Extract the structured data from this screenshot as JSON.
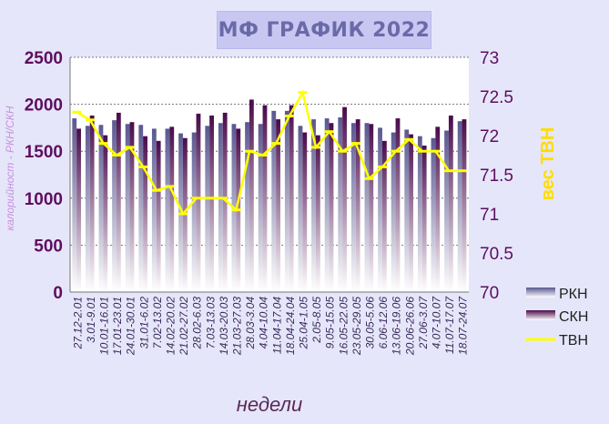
{
  "chart_data": {
    "type": "bar",
    "title": "МФ ГРАФИК 2022",
    "xlabel": "недели",
    "ylabel": "калорийност - РКН/СКН",
    "y2label": "вес ТВН",
    "ylim": [
      0,
      2500
    ],
    "y2lim": [
      70,
      73
    ],
    "yticks": [
      "0",
      "500",
      "1000",
      "1500",
      "2000",
      "2500"
    ],
    "y2ticks": [
      "70",
      "70.5",
      "71",
      "71.5",
      "72",
      "72.5",
      "73"
    ],
    "grid": true,
    "legend": "right",
    "colors": {
      "rkn": "#6e6ba6",
      "skn": "#5e0e5e",
      "tvn": "#ffff00"
    },
    "categories": [
      "27.12-2.01",
      "3.01-9.01",
      "10.01-16.01",
      "17.01-23.01",
      "24.01-30.01",
      "31.01-6.02",
      "7.02-13.02",
      "14.02-20.02",
      "21.02-27.02",
      "28.02-6.03",
      "7.03-13.03",
      "14.03-20.03",
      "21.03-27.03",
      "28.03-3.04",
      "4.04-10.04",
      "11.04-17.04",
      "18.04-24.04",
      "25.04-1.05",
      "2.05-8.05",
      "9.05-15.05",
      "16.05-22.05",
      "23.05-29.05",
      "30.05-5.06",
      "6.06-12.06",
      "13.06-19.06",
      "20.06-26.06",
      "27.06-3.07",
      "4.07-10.07",
      "11.07-17.07",
      "18.07-24.07"
    ],
    "tick_labels": [
      "27.12-2.01",
      "3.01-9.01",
      "10.01-16.01",
      "17.01-23.01",
      "24.01-30.01",
      "31.01-6.02",
      "7.02-13.02",
      "14.02-20.02",
      "21.02-27.02",
      "28.02-6.03",
      "7.03-13.03",
      "14.03-20.03",
      "21.03-27.03",
      "28.03-3.04",
      "4.04-10.04",
      "11.04-17.04",
      "18.04-24.04",
      "25.04-1.05",
      "2.05-8.05",
      "9.05-15.05",
      "16.05-22.05",
      "23.05-29.05",
      "30.05-5.06",
      "6.06-12.06",
      "13.06-19.06",
      "20.06-26.06",
      "27.06-3.07",
      "4.07-10.07",
      "11.07-17.07",
      "18.07-24.07"
    ],
    "series": [
      {
        "name": "РКН",
        "axis": "left",
        "type": "bar",
        "values": [
          1850,
          1770,
          1780,
          1830,
          1790,
          1780,
          1740,
          1740,
          1690,
          1700,
          1770,
          1800,
          1790,
          1810,
          1790,
          1930,
          1930,
          1770,
          1840,
          1850,
          1860,
          1800,
          1800,
          1750,
          1700,
          1730,
          1660,
          1640,
          1720,
          1820
        ]
      },
      {
        "name": "СКН",
        "axis": "left",
        "type": "bar",
        "values": [
          1740,
          1880,
          1670,
          1910,
          1810,
          1660,
          1610,
          1760,
          1640,
          1900,
          1880,
          1910,
          1740,
          2050,
          1990,
          1840,
          1990,
          1700,
          1670,
          1800,
          1970,
          1840,
          1790,
          1610,
          1850,
          1680,
          1560,
          1760,
          1880,
          1840
        ]
      },
      {
        "name": "ТВН",
        "axis": "right",
        "type": "line",
        "values": [
          72.3,
          72.2,
          71.9,
          71.75,
          71.85,
          71.6,
          71.3,
          71.35,
          71.0,
          71.2,
          71.2,
          71.2,
          71.05,
          71.8,
          71.75,
          71.9,
          72.25,
          72.55,
          71.85,
          72.05,
          71.8,
          71.9,
          71.45,
          71.6,
          71.8,
          71.95,
          71.8,
          71.8,
          71.55,
          71.55
        ]
      }
    ]
  }
}
